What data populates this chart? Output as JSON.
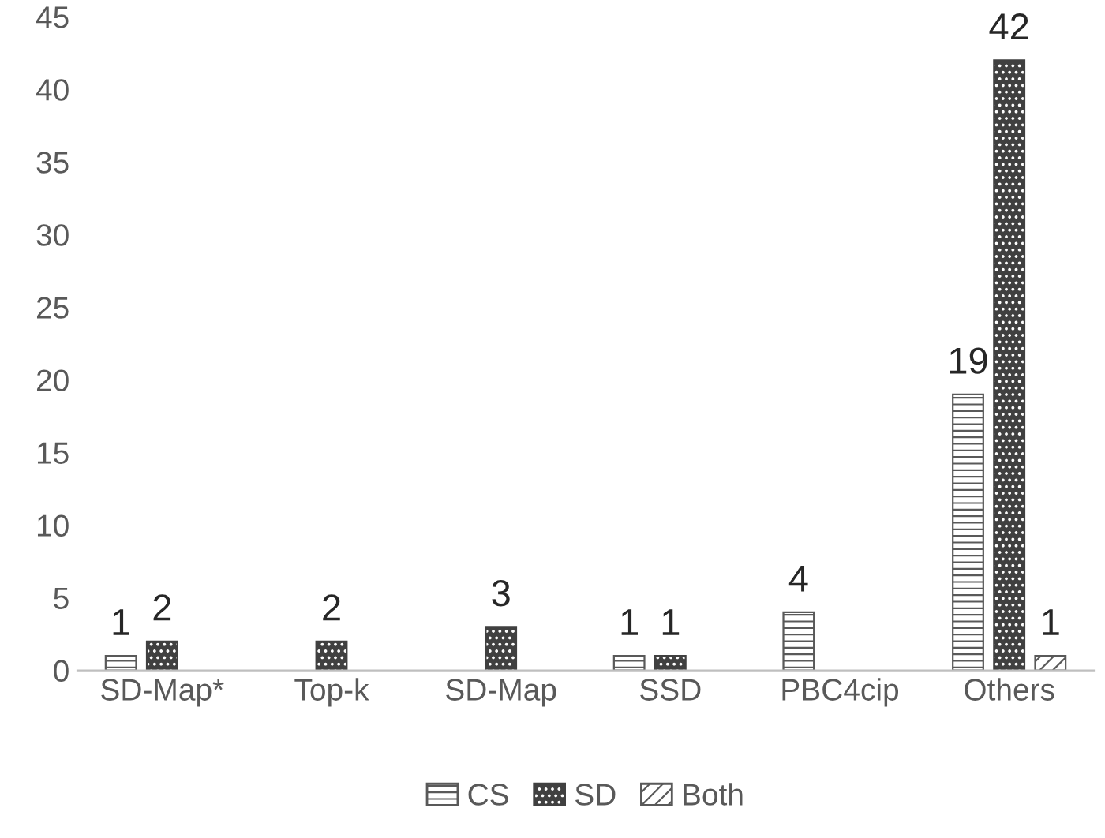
{
  "chart_data": {
    "type": "bar",
    "categories": [
      "SD-Map*",
      "Top-k",
      "SD-Map",
      "SSD",
      "PBC4cip",
      "Others"
    ],
    "series": [
      {
        "name": "CS",
        "color": "#595959",
        "values": [
          1,
          null,
          null,
          1,
          4,
          19
        ]
      },
      {
        "name": "SD",
        "color": "#404040",
        "values": [
          2,
          2,
          3,
          1,
          null,
          42
        ]
      },
      {
        "name": "Both",
        "color": "#595959",
        "values": [
          null,
          null,
          null,
          null,
          null,
          1
        ]
      }
    ],
    "ylim": [
      0,
      45
    ],
    "yticks": [
      0,
      5,
      10,
      15,
      20,
      25,
      30,
      35,
      40,
      45
    ],
    "grid": false,
    "legend": "bottom",
    "data_labels": true
  }
}
